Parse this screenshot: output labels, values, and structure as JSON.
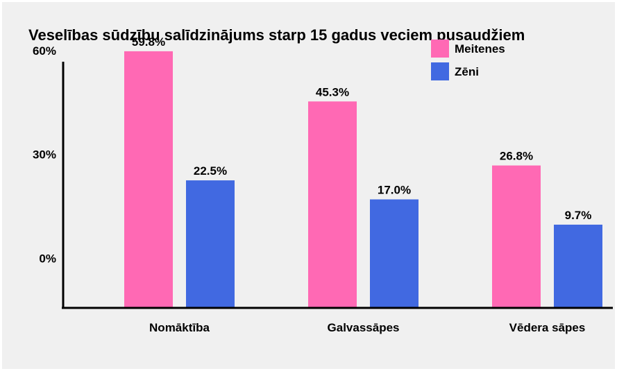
{
  "chart_data": {
    "type": "bar",
    "title": "Veselības sūdzību salīdzinājums starp 15 gadus veciem pusaudžiem",
    "categories": [
      "Nomāktība",
      "Galvassāpes",
      "Vēdera sāpes"
    ],
    "series": [
      {
        "name": "Meitenes",
        "color": "#ff69b4",
        "values": [
          59.8,
          45.3,
          26.8
        ],
        "labels": [
          "59.8%",
          "45.3%",
          "26.8%"
        ]
      },
      {
        "name": "Zēni",
        "color": "#4169e1",
        "values": [
          22.5,
          17.0,
          9.7
        ],
        "labels": [
          "22.5%",
          "17.0%",
          "9.7%"
        ]
      }
    ],
    "y_ticks": [
      {
        "value": 60,
        "label": "60%"
      },
      {
        "value": 30,
        "label": "30%"
      },
      {
        "value": 0,
        "label": "0%"
      }
    ],
    "ylim": [
      -14.35,
      70
    ],
    "grid": false,
    "legend_position": "top-right"
  }
}
